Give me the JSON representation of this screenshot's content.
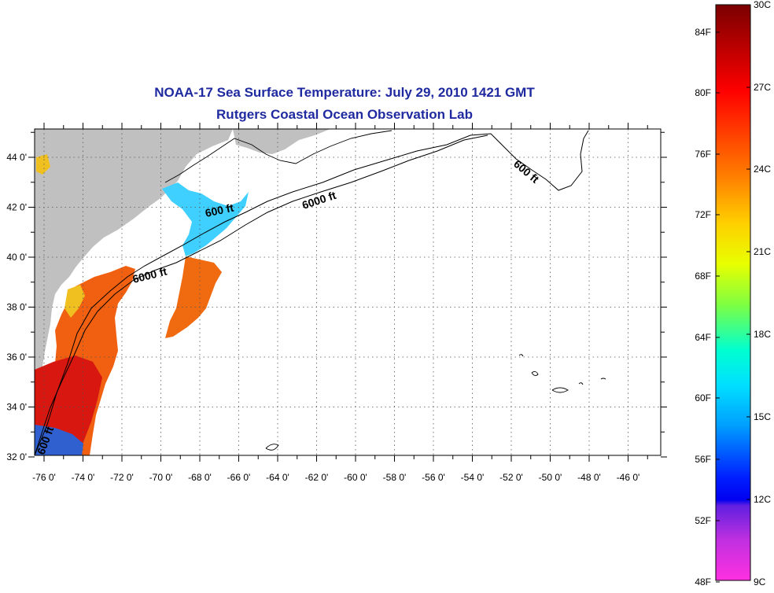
{
  "title": "NOAA-17 Sea Surface Temperature:  July 29, 2010 1421 GMT",
  "subtitle": "Rutgers Coastal Ocean Observation Lab",
  "map": {
    "lon_ticks": [
      "-76 0'",
      "-74 0'",
      "-72 0'",
      "-70 0'",
      "-68 0'",
      "-66 0'",
      "-64 0'",
      "-62 0'",
      "-60 0'",
      "-58 0'",
      "-56 0'",
      "-54 0'",
      "-52 0'",
      "-50 0'",
      "-48 0'",
      "-46 0'"
    ],
    "lat_ticks": [
      "44 0'",
      "42 0'",
      "40 0'",
      "38 0'",
      "36 0'",
      "34 0'",
      "32 0'"
    ],
    "contour_labels": [
      "600 ft",
      "6000 ft",
      "6000 ft",
      "600 ft",
      "600 ft"
    ],
    "colors": {
      "land": "#c0c0c0",
      "water": "#ffffff",
      "grid": "#555555"
    }
  },
  "colorbar": {
    "fahrenheit_labels": [
      "84F",
      "80F",
      "76F",
      "72F",
      "68F",
      "64F",
      "60F",
      "56F",
      "52F",
      "48F"
    ],
    "celsius_labels": [
      "30C",
      "27C",
      "24C",
      "21C",
      "18C",
      "15C",
      "12C",
      "9C"
    ],
    "range_celsius": [
      9,
      30
    ]
  }
}
